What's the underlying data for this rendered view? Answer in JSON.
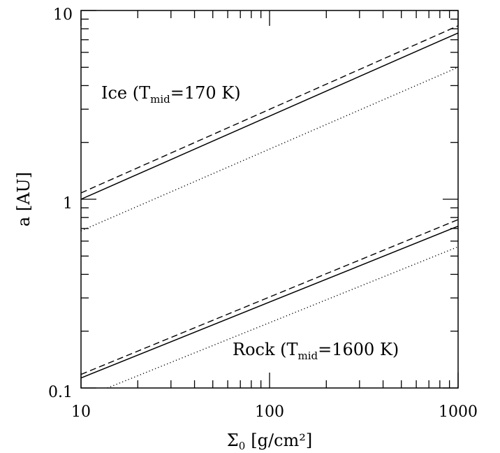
{
  "chart_data": {
    "type": "line",
    "title": "",
    "xlabel": {
      "symbol": "Σ",
      "subscript": "0",
      "unit": "[g/cm²]"
    },
    "ylabel": "a [AU]",
    "xscale": "log",
    "yscale": "log",
    "xlim": [
      10,
      1000
    ],
    "ylim": [
      0.1,
      10
    ],
    "grid": false,
    "legend": "none",
    "xticklabels": [
      "10",
      "100",
      "1000"
    ],
    "yticklabels": [
      "0.1",
      "1",
      "10"
    ],
    "annotations": {
      "ice": {
        "prefix": "Ice (T",
        "sub": "mid",
        "suffix": "=170 K)"
      },
      "rock": {
        "prefix": "Rock (T",
        "sub": "mid",
        "suffix": "=1600 K)"
      }
    },
    "series": [
      {
        "group": "ice",
        "style": "solid",
        "x": [
          10,
          1000
        ],
        "y": [
          1.0,
          7.6
        ]
      },
      {
        "group": "ice",
        "style": "dashed",
        "x": [
          10,
          1000
        ],
        "y": [
          1.08,
          8.3
        ]
      },
      {
        "group": "ice",
        "style": "dotted",
        "x": [
          10,
          1000
        ],
        "y": [
          0.68,
          5.0
        ]
      },
      {
        "group": "rock",
        "style": "solid",
        "x": [
          10,
          1000
        ],
        "y": [
          0.113,
          0.72
        ]
      },
      {
        "group": "rock",
        "style": "dashed",
        "x": [
          10,
          1000
        ],
        "y": [
          0.118,
          0.78
        ]
      },
      {
        "group": "rock",
        "style": "dotted",
        "x": [
          13.8,
          1000
        ],
        "y": [
          0.1,
          0.56
        ]
      }
    ]
  }
}
